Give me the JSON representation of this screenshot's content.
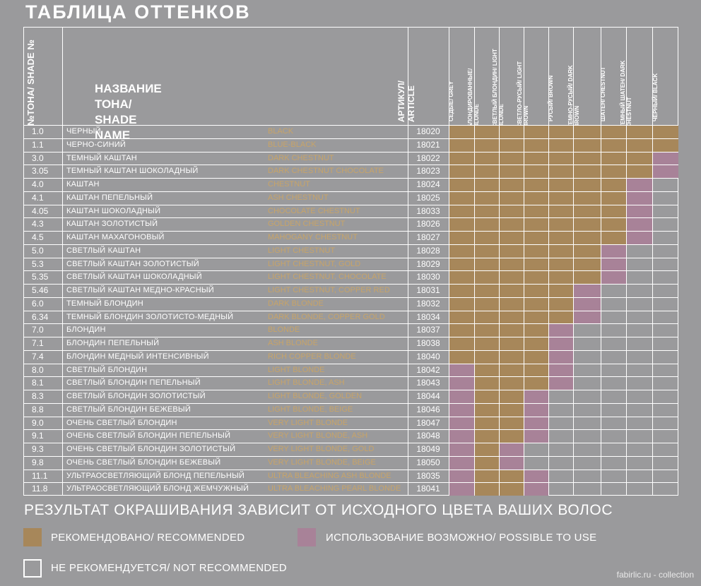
{
  "title": "ТАБЛИЦА ОТТЕНКОВ",
  "header": {
    "tone_col": "№ТОНА/ SHADE №",
    "name_col_line1": "НАЗВАНИЕ ТОНА/",
    "name_col_line2": "SHADE NAME",
    "article_col": "АРТИКУЛ/ ARTICLE",
    "base_cols": [
      "СЕДЫЕ/ GREY",
      "БЛОНДИРОВАННЫЕ/ BLONDE",
      "СВЕТЛЫЙ БЛОНДИН/ LIGHT BLONDE",
      "СВЕТЛО-РУСЫЙ/ LIGHT BROWN",
      "РУСЫЙ/ BROWN",
      "ТЕМНО-РУСЫЙ/ DARK BROWN",
      "ШАТЕН/ CHESTNUT",
      "ТЕМНЫЙ ШАТЕН/ DARK CHESTNUT",
      "ЧЕРНЫЙ/ BLACK"
    ]
  },
  "colors": {
    "recommended": "#a7875a",
    "possible": "#a88298",
    "not_recommended": "#9a9a9c"
  },
  "rows": [
    {
      "tone": "1.0",
      "ru": "ЧЕРНЫЙ",
      "en": "BLACK",
      "article": "18020",
      "cells": "RRRRRRRRR"
    },
    {
      "tone": "1.1",
      "ru": "ЧЕРНО-СИНИЙ",
      "en": "BLUE-BLACK",
      "article": "18021",
      "cells": "RRRRRRRRR"
    },
    {
      "tone": "3.0",
      "ru": "ТЕМНЫЙ КАШТАН",
      "en": "DARK CHESTNUT",
      "article": "18022",
      "cells": "RRRRRRRRP"
    },
    {
      "tone": "3.05",
      "ru": "ТЕМНЫЙ КАШТАН ШОКОЛАДНЫЙ",
      "en": "DARK CHESTNUT CHOCOLATE",
      "article": "18023",
      "cells": "RRRRRRRRP"
    },
    {
      "tone": "4.0",
      "ru": "КАШТАН",
      "en": "CHESTNUT",
      "article": "18024",
      "cells": "RRRRRRRPN"
    },
    {
      "tone": "4.1",
      "ru": "КАШТАН ПЕПЕЛЬНЫЙ",
      "en": "ASH CHESTNUT",
      "article": "18025",
      "cells": "RRRRRRRPN"
    },
    {
      "tone": "4.05",
      "ru": "КАШТАН ШОКОЛАДНЫЙ",
      "en": "CHOCOLATE CHESTNUT",
      "article": "18033",
      "cells": "RRRRRRRPN"
    },
    {
      "tone": "4.3",
      "ru": "КАШТАН ЗОЛОТИСТЫЙ",
      "en": "GOLDEN CHESTNUT",
      "article": "18026",
      "cells": "RRRRRRRPN"
    },
    {
      "tone": "4.5",
      "ru": "КАШТАН МАХАГОНОВЫЙ",
      "en": "MAHOGANY CHESTNUT",
      "article": "18027",
      "cells": "RRRRRRRPN"
    },
    {
      "tone": "5.0",
      "ru": "СВЕТЛЫЙ КАШТАН",
      "en": "LIGHT CHESTNUT",
      "article": "18028",
      "cells": "RRRRRRPNN"
    },
    {
      "tone": "5.3",
      "ru": "СВЕТЛЫЙ КАШТАН ЗОЛОТИСТЫЙ",
      "en": "LIGHT CHESTNUT, GOLD",
      "article": "18029",
      "cells": "RRRRRRPNN"
    },
    {
      "tone": "5.35",
      "ru": "СВЕТЛЫЙ КАШТАН ШОКОЛАДНЫЙ",
      "en": "LIGHT CHESTNUT, CHOCOLATE",
      "article": "18030",
      "cells": "RRRRRRPNN"
    },
    {
      "tone": "5.46",
      "ru": "СВЕТЛЫЙ КАШТАН МЕДНО-КРАСНЫЙ",
      "en": "LIGHT CHESTNUT, COPPER RED",
      "article": "18031",
      "cells": "RRRRRPNNN"
    },
    {
      "tone": "6.0",
      "ru": "ТЕМНЫЙ БЛОНДИН",
      "en": "DARK BLONDE",
      "article": "18032",
      "cells": "RRRRRPNNN"
    },
    {
      "tone": "6.34",
      "ru": "ТЕМНЫЙ БЛОНДИН ЗОЛОТИСТО-МЕДНЫЙ",
      "en": "DARK BLONDE, COPPER GOLD",
      "article": "18034",
      "cells": "RRRRRPNNN"
    },
    {
      "tone": "7.0",
      "ru": "БЛОНДИН",
      "en": "BLONDE",
      "article": "18037",
      "cells": "RRRRPNNNN"
    },
    {
      "tone": "7.1",
      "ru": "БЛОНДИН ПЕПЕЛЬНЫЙ",
      "en": "ASH BLONDE",
      "article": "18038",
      "cells": "RRRRPNNNN"
    },
    {
      "tone": "7.4",
      "ru": "БЛОНДИН МЕДНЫЙ ИНТЕНСИВНЫЙ",
      "en": "RICH COPPER BLONDE",
      "article": "18040",
      "cells": "RRRRPNNNN"
    },
    {
      "tone": "8.0",
      "ru": "СВЕТЛЫЙ БЛОНДИН",
      "en": "LIGHT BLONDE",
      "article": "18042",
      "cells": "PRRRPNNNN"
    },
    {
      "tone": "8.1",
      "ru": "СВЕТЛЫЙ БЛОНДИН ПЕПЕЛЬНЫЙ",
      "en": "LIGHT BLONDE, ASH",
      "article": "18043",
      "cells": "PRRRPNNNN"
    },
    {
      "tone": "8.3",
      "ru": "СВЕТЛЫЙ БЛОНДИН ЗОЛОТИСТЫЙ",
      "en": "LIGHT BLONDE, GOLDEN",
      "article": "18044",
      "cells": "PRRPNNNNN"
    },
    {
      "tone": "8.8",
      "ru": "СВЕТЛЫЙ БЛОНДИН БЕЖЕВЫЙ",
      "en": "LIGHT BLONDE, BEIGE",
      "article": "18046",
      "cells": "PRRPNNNNN"
    },
    {
      "tone": "9.0",
      "ru": "ОЧЕНЬ СВЕТЛЫЙ БЛОНДИН",
      "en": "VERY LIGHT BLONDE",
      "article": "18047",
      "cells": "PRRPNNNNN"
    },
    {
      "tone": "9.1",
      "ru": "ОЧЕНЬ СВЕТЛЫЙ БЛОНДИН ПЕПЕЛЬНЫЙ",
      "en": "VERY LIGHT BLONDE, ASH",
      "article": "18048",
      "cells": "PRRPNNNNN"
    },
    {
      "tone": "9.3",
      "ru": "ОЧЕНЬ СВЕТЛЫЙ БЛОНДИН ЗОЛОТИСТЫЙ",
      "en": "VERY LIGHT BLONDE, GOLD",
      "article": "18049",
      "cells": "PRPNNNNNN"
    },
    {
      "tone": "9.8",
      "ru": "ОЧЕНЬ СВЕТЛЫЙ БЛОНДИН БЕЖЕВЫЙ",
      "en": "VERY LIGHT BLONDE, BEIGE",
      "article": "18050",
      "cells": "PRPNNNNNN"
    },
    {
      "tone": "11.1",
      "ru": "УЛЬТРАОСВЕТЛЯЮЩИЙ БЛОНД ПЕПЕЛЬНЫЙ",
      "en": "ULTRA BLEACHING ASH BLONDE",
      "article": "18035",
      "cells": "PRRPNNNNN"
    },
    {
      "tone": "11.8",
      "ru": "УЛЬТРАОСВЕТЛЯЮЩИЙ БЛОНД ЖЕМЧУЖНЫЙ",
      "en": "ULTRA BLEACHING PEARL BLONDE",
      "article": "18041",
      "cells": "PRRPNNNNN"
    }
  ],
  "note": "РЕЗУЛЬТАТ ОКРАШИВАНИЯ ЗАВИСИТ ОТ ИСХОДНОГО ЦВЕТА ВАШИХ ВОЛОС",
  "legend": {
    "recommended": "РЕКОМЕНДОВАНО/ RECOMMENDED",
    "possible": "ИСПОЛЬЗОВАНИЕ ВОЗМОЖНО/  POSSIBLE TO USE",
    "not_recommended": "НЕ РЕКОМЕНДУЕТСЯ/ NOT RECOMMENDED"
  },
  "credit": "fabirlic.ru - collection"
}
